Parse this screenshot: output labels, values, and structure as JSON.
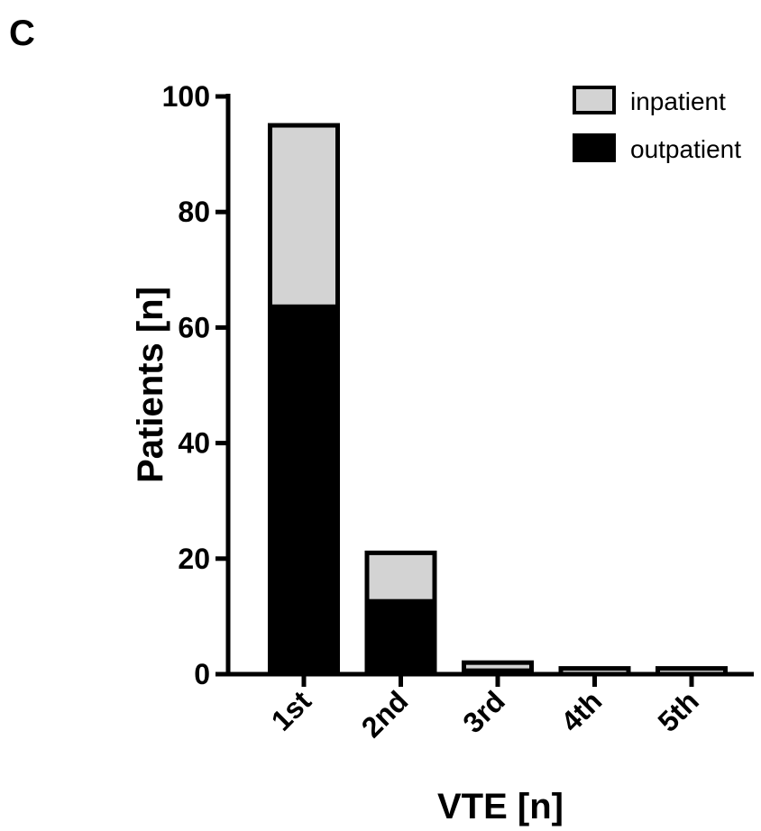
{
  "panel_label": "C",
  "colors": {
    "inpatient": "#d3d3d3",
    "outpatient": "#000000",
    "axis": "#000000"
  },
  "chart_data": {
    "type": "bar",
    "stacked": true,
    "categories": [
      "1st",
      "2nd",
      "3rd",
      "4th",
      "5th"
    ],
    "series": [
      {
        "name": "outpatient",
        "values": [
          64,
          13,
          1,
          0,
          0
        ]
      },
      {
        "name": "inpatient",
        "values": [
          31,
          8,
          1,
          1,
          1
        ]
      }
    ],
    "legend_order": [
      "inpatient",
      "outpatient"
    ],
    "legend_position": "top-right",
    "xlabel": "VTE [n]",
    "ylabel": "Patients [n]",
    "ylim": [
      0,
      100
    ],
    "yticks": [
      0,
      20,
      40,
      60,
      80,
      100
    ],
    "grid": false
  }
}
